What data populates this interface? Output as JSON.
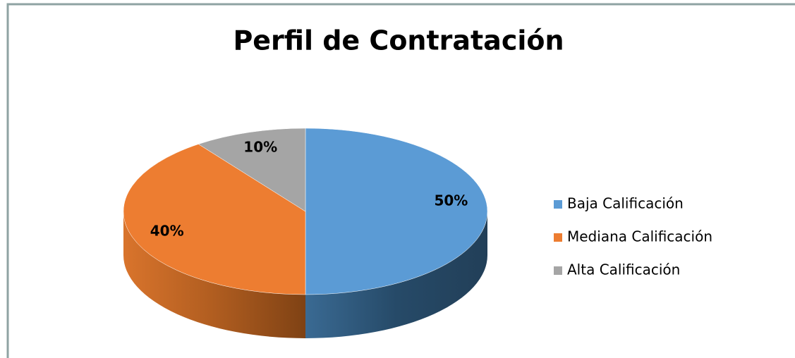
{
  "chart_data": {
    "type": "pie",
    "title": "Perfil de Contratación",
    "categories": [
      "Baja Calificación",
      "Mediana Calificación",
      "Alta Calificación"
    ],
    "values": [
      50,
      40,
      10
    ],
    "value_labels": [
      "50%",
      "40%",
      "10%"
    ],
    "colors": [
      "#5b9bd5",
      "#ed7d31",
      "#a5a5a5"
    ],
    "legend": "right"
  }
}
